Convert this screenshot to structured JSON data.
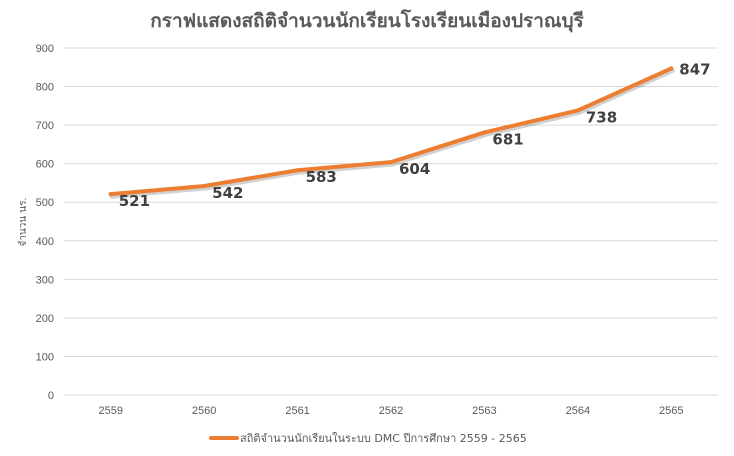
{
  "chart_data": {
    "type": "line",
    "title": "กราฟแสดงสถิติจำนวนนักเรียนโรงเรียนเมืองปราณบุรี",
    "xlabel": "",
    "ylabel": "จำนวน นร.",
    "categories": [
      "2559",
      "2560",
      "2561",
      "2562",
      "2563",
      "2564",
      "2565"
    ],
    "series": [
      {
        "name": "สถิติจำนวนนักเรียนในระบบ DMC  ปีการศึกษา 2559 - 2565",
        "values": [
          521,
          542,
          583,
          604,
          681,
          738,
          847
        ],
        "color": "#ed7d31"
      }
    ],
    "ylim": [
      0,
      900
    ],
    "yticks": [
      0,
      100,
      200,
      300,
      400,
      500,
      600,
      700,
      800,
      900
    ],
    "grid": true,
    "legend": "bottom"
  }
}
